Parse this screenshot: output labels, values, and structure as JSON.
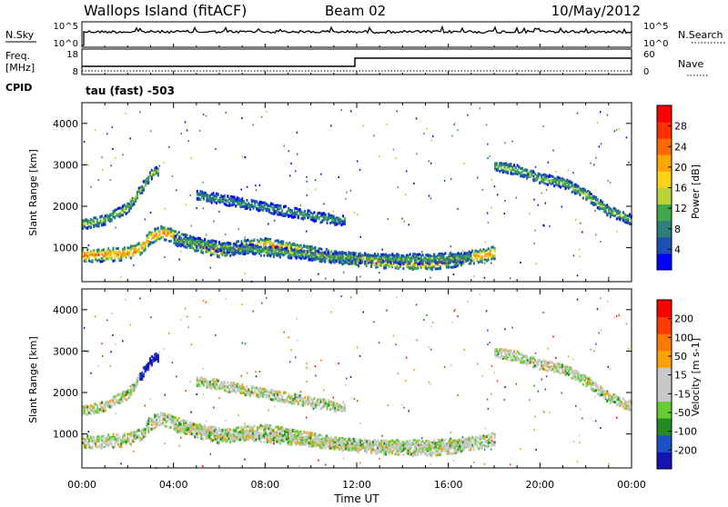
{
  "header": {
    "station": "Wallops Island (fitACF)",
    "beam": "Beam 02",
    "date": "10/May/2012"
  },
  "nsky_panel": {
    "left_label": "N.Sky",
    "right_label": "N.Search",
    "left_ticks": [
      "10^5",
      "10^0"
    ],
    "right_ticks": [
      "10^5",
      "10^0"
    ]
  },
  "freq_panel": {
    "left_label": "Freq.",
    "left_unit": "[MHz]",
    "right_label": "Nave",
    "left_ticks": [
      "18",
      "8"
    ],
    "right_ticks": [
      "60",
      "0"
    ],
    "cpid_label": "CPID",
    "cpid_text": "tau (fast) -503"
  },
  "colors": {
    "power_scale": [
      "#0000ff",
      "#1a4fb5",
      "#2d7f7a",
      "#3fa84a",
      "#b8d43a",
      "#ffd21a",
      "#ffa500",
      "#ff6a00",
      "#ff3000",
      "#ff0000"
    ],
    "velocity_scale": [
      "#1414b4",
      "#1a50c8",
      "#228b22",
      "#66cc33",
      "#c8c8c8",
      "#c8c8c8",
      "#ffa000",
      "#ff7800",
      "#ff3c00",
      "#ff0000"
    ]
  },
  "chart_data": [
    {
      "type": "heatmap",
      "panel": "power",
      "ylabel": "Slant Range [km]",
      "colorbar_label": "Power [dB]",
      "colorbar_ticks": [
        "28",
        "24",
        "20",
        "16",
        "12",
        "8",
        "4"
      ],
      "colorbar_range": [
        0,
        32
      ],
      "xlim_hours": [
        0,
        24
      ],
      "ylim_km": [
        180,
        4500
      ],
      "yticks": [
        "4000",
        "3000",
        "2000",
        "1000"
      ],
      "bands": [
        {
          "t": [
            0.0,
            0.5,
            1.0,
            1.5,
            2.0,
            2.5,
            3.0,
            3.5,
            4.0,
            5.0,
            6.0,
            7.0,
            8.0,
            9.0,
            10.0,
            11.0,
            12.0,
            13.0,
            14.0,
            15.0,
            16.0,
            17.0,
            18.0
          ],
          "range_km": [
            850,
            850,
            860,
            870,
            900,
            1000,
            1300,
            1400,
            1300,
            1100,
            950,
            1050,
            1100,
            1000,
            900,
            800,
            750,
            700,
            680,
            650,
            700,
            800,
            900
          ],
          "peak_db": 24
        },
        {
          "t": [
            0.0,
            1.0,
            2.0,
            2.5,
            3.0,
            3.3
          ],
          "range_km": [
            1600,
            1700,
            2000,
            2400,
            2800,
            2900
          ],
          "peak_db": 14
        },
        {
          "t": [
            5.0,
            6.0,
            7.0,
            8.0,
            9.0,
            10.0,
            11.0,
            11.5
          ],
          "range_km": [
            2300,
            2200,
            2100,
            2000,
            1900,
            1800,
            1700,
            1700
          ],
          "peak_db": 10
        },
        {
          "t": [
            18.0,
            19.0,
            20.0,
            21.0,
            22.0,
            23.0,
            24.0
          ],
          "range_km": [
            3000,
            2900,
            2700,
            2600,
            2300,
            1900,
            1700
          ],
          "peak_db": 14
        },
        {
          "t": [
            4.0,
            5.0,
            6.0,
            7.0,
            8.0,
            9.0,
            10.0,
            11.0,
            12.0,
            13.0,
            14.0,
            15.0,
            16.0,
            17.0
          ],
          "range_km": [
            1200,
            1150,
            1050,
            1000,
            950,
            900,
            850,
            800,
            780,
            760,
            760,
            760,
            780,
            800
          ],
          "peak_db": 12
        }
      ]
    },
    {
      "type": "heatmap",
      "panel": "velocity",
      "xlabel": "Time UT",
      "ylabel": "Slant Range [km]",
      "colorbar_label": "Velocity [m s-1]",
      "colorbar_ticks": [
        "200",
        "100",
        "50",
        "15",
        "-15",
        "-50",
        "-100",
        "-200"
      ],
      "colorbar_range": [
        -250,
        250
      ],
      "xlim_hours": [
        0,
        24
      ],
      "xticks": [
        "00:00",
        "04:00",
        "08:00",
        "12:00",
        "16:00",
        "20:00",
        "00:00"
      ],
      "ylim_km": [
        180,
        4500
      ],
      "yticks": [
        "4000",
        "3000",
        "2000",
        "1000"
      ]
    }
  ]
}
